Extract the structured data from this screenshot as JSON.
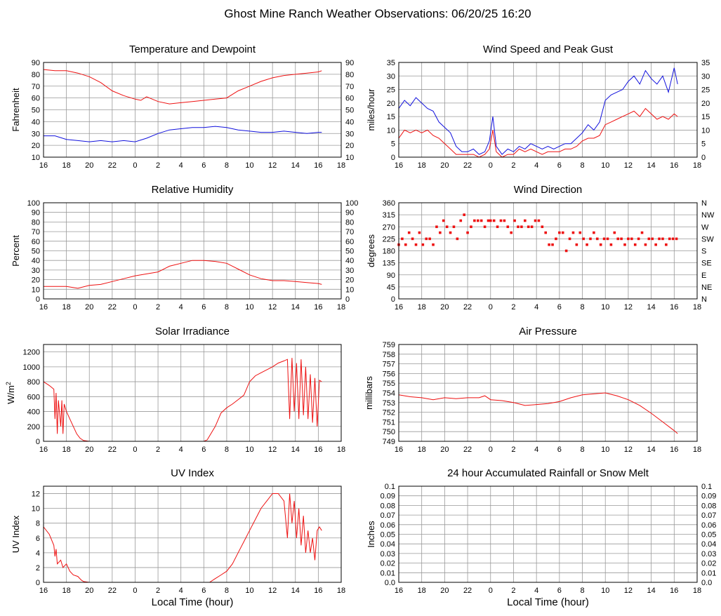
{
  "title": "Ghost Mine Ranch Weather Observations: 06/20/25 16:20",
  "x_ticks": [
    "16",
    "18",
    "20",
    "22",
    "0",
    "2",
    "4",
    "6",
    "8",
    "10",
    "12",
    "14",
    "16",
    "18"
  ],
  "x_axis_label": "Local Time (hour)",
  "colors": {
    "red": "#ee1111",
    "blue": "#1111dd",
    "grid": "#999999",
    "frame": "#000000"
  },
  "chart_data": [
    {
      "id": "temperature",
      "type": "line",
      "title": "Temperature and Dewpoint",
      "ylabel": "Fahrenheit",
      "ylim": [
        10,
        90
      ],
      "yticks": [
        "10",
        "20",
        "30",
        "40",
        "50",
        "60",
        "70",
        "80",
        "90"
      ],
      "right_yticks": [
        "10",
        "20",
        "30",
        "40",
        "50",
        "60",
        "70",
        "80",
        "90"
      ],
      "x_hours_since_16": [
        0,
        2,
        4,
        6,
        8,
        10,
        12,
        14,
        16,
        18,
        20,
        22,
        24
      ],
      "xlim_hours": [
        0,
        26
      ],
      "series": [
        {
          "color": "red",
          "x": [
            0,
            1,
            2,
            3,
            4,
            5,
            6,
            7,
            8,
            8.5,
            9,
            10,
            11,
            12,
            13,
            14,
            15,
            16,
            17,
            18,
            19,
            20,
            21,
            22,
            23,
            24,
            24.3
          ],
          "values": [
            84,
            83,
            83,
            81,
            78,
            73,
            66,
            62,
            59,
            58,
            61,
            57,
            55,
            56,
            57,
            58,
            59,
            60,
            66,
            70,
            74,
            77,
            79,
            80,
            81,
            82,
            83
          ]
        },
        {
          "color": "blue",
          "x": [
            0,
            1,
            2,
            3,
            4,
            5,
            6,
            7,
            8,
            9,
            10,
            11,
            12,
            13,
            14,
            15,
            16,
            17,
            18,
            19,
            20,
            21,
            22,
            23,
            24,
            24.3
          ],
          "values": [
            28,
            28,
            25,
            24,
            23,
            24,
            23,
            24,
            23,
            26,
            30,
            33,
            34,
            35,
            35,
            36,
            35,
            33,
            32,
            31,
            31,
            32,
            31,
            30,
            31,
            31
          ]
        }
      ]
    },
    {
      "id": "wind_speed",
      "type": "line",
      "title": "Wind Speed and Peak Gust",
      "ylabel": "miles/hour",
      "ylim": [
        0,
        35
      ],
      "yticks": [
        "0",
        "5",
        "10",
        "15",
        "20",
        "25",
        "30",
        "35"
      ],
      "right_yticks": [
        "0",
        "5",
        "10",
        "15",
        "20",
        "25",
        "30",
        "35"
      ],
      "xlim_hours": [
        0,
        26
      ],
      "series": [
        {
          "color": "blue",
          "x": [
            0,
            0.5,
            1,
            1.5,
            2,
            2.5,
            3,
            3.5,
            4,
            4.5,
            5,
            5.5,
            6,
            6.5,
            7,
            7.5,
            7.9,
            8.2,
            8.5,
            9,
            9.5,
            10,
            10.5,
            11,
            11.5,
            12,
            12.5,
            13,
            13.5,
            14,
            14.5,
            15,
            15.5,
            16,
            16.5,
            17,
            17.5,
            18,
            18.5,
            19,
            19.5,
            20,
            20.5,
            21,
            21.5,
            22,
            22.5,
            23,
            23.5,
            24,
            24.3
          ],
          "values": [
            18,
            21,
            19,
            22,
            20,
            18,
            17,
            13,
            11,
            9,
            4,
            2,
            2,
            3,
            1,
            2,
            6,
            15,
            4,
            1,
            3,
            2,
            4,
            3,
            5,
            4,
            3,
            4,
            3,
            4,
            5,
            5,
            7,
            9,
            12,
            10,
            13,
            21,
            23,
            24,
            25,
            28,
            30,
            27,
            32,
            29,
            27,
            30,
            24,
            33,
            27
          ]
        },
        {
          "color": "red",
          "x": [
            0,
            0.5,
            1,
            1.5,
            2,
            2.5,
            3,
            3.5,
            4,
            4.5,
            5,
            5.5,
            6,
            6.5,
            7,
            7.5,
            7.9,
            8.2,
            8.5,
            9,
            9.5,
            10,
            10.5,
            11,
            11.5,
            12,
            12.5,
            13,
            13.5,
            14,
            14.5,
            15,
            15.5,
            16,
            16.5,
            17,
            17.5,
            18,
            18.5,
            19,
            19.5,
            20,
            20.5,
            21,
            21.5,
            22,
            22.5,
            23,
            23.5,
            24,
            24.3
          ],
          "values": [
            7,
            10,
            9,
            10,
            9,
            10,
            8,
            7,
            5,
            3,
            1,
            1,
            1,
            1,
            0,
            1,
            3,
            10,
            2,
            0,
            1,
            1,
            3,
            2,
            3,
            2,
            1,
            2,
            2,
            2,
            3,
            3,
            4,
            6,
            7,
            7,
            8,
            12,
            13,
            14,
            15,
            16,
            17,
            15,
            18,
            16,
            14,
            15,
            14,
            16,
            15
          ]
        }
      ]
    },
    {
      "id": "humidity",
      "type": "line",
      "title": "Relative Humidity",
      "ylabel": "Percent",
      "ylim": [
        0,
        100
      ],
      "yticks": [
        "0",
        "10",
        "20",
        "30",
        "40",
        "50",
        "60",
        "70",
        "80",
        "90",
        "100"
      ],
      "right_yticks": [
        "0",
        "10",
        "20",
        "30",
        "40",
        "50",
        "60",
        "70",
        "80",
        "90",
        "100"
      ],
      "xlim_hours": [
        0,
        26
      ],
      "series": [
        {
          "color": "red",
          "x": [
            0,
            1,
            2,
            3,
            4,
            5,
            6,
            7,
            8,
            9,
            10,
            11,
            12,
            13,
            14,
            15,
            16,
            17,
            18,
            19,
            20,
            21,
            22,
            23,
            24,
            24.3
          ],
          "values": [
            13,
            13,
            13,
            11,
            14,
            15,
            18,
            21,
            24,
            26,
            28,
            34,
            37,
            40,
            40,
            39,
            37,
            31,
            25,
            21,
            19,
            19,
            18,
            17,
            16,
            15
          ]
        }
      ]
    },
    {
      "id": "wind_direction",
      "type": "scatter",
      "title": "Wind Direction",
      "ylabel": "degrees",
      "ylim": [
        0,
        360
      ],
      "yticks": [
        "0",
        "45",
        "90",
        "135",
        "180",
        "225",
        "270",
        "315",
        "360"
      ],
      "right_yticks": [
        "N",
        "NE",
        "E",
        "SE",
        "S",
        "SW",
        "W",
        "NW",
        "N"
      ],
      "xlim_hours": [
        0,
        26
      ],
      "series": [
        {
          "color": "red",
          "x": [
            0,
            0.3,
            0.6,
            0.9,
            1.2,
            1.5,
            1.8,
            2.1,
            2.4,
            2.7,
            3.0,
            3.3,
            3.6,
            3.9,
            4.2,
            4.5,
            4.8,
            5.1,
            5.4,
            5.7,
            6.0,
            6.3,
            6.6,
            6.9,
            7.2,
            7.5,
            7.8,
            8.0,
            8.3,
            8.6,
            8.9,
            9.2,
            9.5,
            9.8,
            10.1,
            10.4,
            10.7,
            11.0,
            11.3,
            11.6,
            11.9,
            12.2,
            12.5,
            12.8,
            13.1,
            13.4,
            13.7,
            14.0,
            14.3,
            14.6,
            14.9,
            15.2,
            15.5,
            15.8,
            16.1,
            16.4,
            16.7,
            17.0,
            17.3,
            17.6,
            17.9,
            18.2,
            18.5,
            18.8,
            19.1,
            19.4,
            19.7,
            20.0,
            20.3,
            20.6,
            20.9,
            21.2,
            21.5,
            21.8,
            22.1,
            22.4,
            22.7,
            23.0,
            23.3,
            23.6,
            23.9,
            24.2
          ],
          "values": [
            203,
            225,
            203,
            248,
            225,
            203,
            248,
            203,
            225,
            225,
            203,
            270,
            248,
            293,
            270,
            248,
            270,
            225,
            293,
            315,
            248,
            270,
            293,
            293,
            293,
            270,
            293,
            293,
            293,
            270,
            293,
            293,
            270,
            248,
            293,
            270,
            270,
            293,
            270,
            270,
            293,
            293,
            270,
            248,
            203,
            203,
            225,
            248,
            248,
            180,
            225,
            248,
            203,
            248,
            225,
            203,
            225,
            248,
            225,
            203,
            225,
            225,
            203,
            248,
            225,
            225,
            203,
            225,
            225,
            203,
            225,
            248,
            203,
            225,
            225,
            203,
            225,
            225,
            203,
            225,
            225,
            225
          ]
        }
      ]
    },
    {
      "id": "solar",
      "type": "line",
      "title": "Solar Irradiance",
      "ylabel": "W/m",
      "ylabel_sup": "2",
      "ylim": [
        0,
        1300
      ],
      "yticks": [
        "0",
        "200",
        "400",
        "600",
        "800",
        "1000",
        "1200"
      ],
      "xlim_hours": [
        0,
        26
      ],
      "series": [
        {
          "color": "red",
          "x": [
            0,
            0.5,
            0.9,
            1.0,
            1.1,
            1.2,
            1.3,
            1.5,
            1.6,
            1.7,
            1.8,
            2.0,
            2.3,
            2.6,
            2.9,
            3.2,
            3.5,
            4,
            5,
            6,
            8,
            10,
            12,
            13.5,
            14,
            14.3,
            15,
            15.5,
            16,
            16.5,
            17,
            17.5,
            18,
            18.5,
            19,
            19.5,
            20,
            20.5,
            21,
            21.3,
            21.5,
            21.7,
            21.9,
            22.1,
            22.3,
            22.5,
            22.7,
            22.9,
            23.1,
            23.3,
            23.5,
            23.7,
            23.9,
            24.1,
            24.3
          ],
          "values": [
            800,
            750,
            700,
            300,
            650,
            100,
            550,
            200,
            550,
            100,
            500,
            400,
            300,
            200,
            100,
            40,
            10,
            0,
            0,
            0,
            0,
            0,
            0,
            0,
            0,
            20,
            200,
            380,
            450,
            500,
            560,
            620,
            800,
            880,
            920,
            960,
            1000,
            1050,
            1080,
            1100,
            300,
            1120,
            400,
            1050,
            300,
            1100,
            350,
            1000,
            300,
            900,
            250,
            850,
            200,
            820,
            800
          ]
        }
      ]
    },
    {
      "id": "pressure",
      "type": "line",
      "title": "Air Pressure",
      "ylabel": "millibars",
      "ylim": [
        749,
        759
      ],
      "yticks": [
        "749",
        "750",
        "751",
        "752",
        "753",
        "754",
        "755",
        "756",
        "757",
        "758",
        "759"
      ],
      "xlim_hours": [
        0,
        26
      ],
      "series": [
        {
          "color": "red",
          "x": [
            0,
            1,
            2,
            3,
            4,
            5,
            6,
            7,
            7.5,
            8,
            9,
            10,
            11,
            12,
            13,
            14,
            15,
            16,
            17,
            18,
            19,
            20,
            21,
            22,
            23,
            24,
            24.3
          ],
          "values": [
            753.8,
            753.6,
            753.5,
            753.3,
            753.5,
            753.4,
            753.5,
            753.5,
            753.7,
            753.3,
            753.2,
            753.0,
            752.7,
            752.8,
            752.9,
            753.1,
            753.5,
            753.8,
            753.9,
            754.0,
            753.7,
            753.3,
            752.7,
            751.9,
            751.0,
            750.1,
            749.8
          ]
        }
      ]
    },
    {
      "id": "uv",
      "type": "line",
      "title": "UV Index",
      "ylabel": "UV Index",
      "ylim": [
        0,
        13
      ],
      "yticks": [
        "0",
        "2",
        "4",
        "6",
        "8",
        "10",
        "12"
      ],
      "xlim_hours": [
        0,
        26
      ],
      "series": [
        {
          "color": "red",
          "x": [
            0,
            0.5,
            0.9,
            1.0,
            1.1,
            1.2,
            1.5,
            1.7,
            2.0,
            2.3,
            2.6,
            3.0,
            3.3,
            3.5,
            4,
            6,
            8,
            10,
            14.5,
            15,
            15.5,
            16,
            16.5,
            17,
            17.5,
            18,
            18.5,
            19,
            19.5,
            20,
            20.5,
            21,
            21.3,
            21.5,
            21.7,
            21.9,
            22.1,
            22.3,
            22.5,
            22.7,
            22.9,
            23.1,
            23.3,
            23.5,
            23.7,
            23.9,
            24.1,
            24.3
          ],
          "values": [
            7.5,
            6.5,
            5,
            3.5,
            4.5,
            2.5,
            3,
            2,
            2.5,
            1.5,
            1,
            0.8,
            0.3,
            0.1,
            0,
            0,
            0,
            0,
            0,
            0.5,
            1,
            1.5,
            2.5,
            4,
            5.5,
            7,
            8.5,
            10,
            11,
            12,
            12,
            11,
            6,
            12,
            8,
            11,
            6,
            10,
            5,
            9,
            4,
            7,
            4,
            6,
            3,
            7,
            7.5,
            7
          ]
        }
      ]
    },
    {
      "id": "rain",
      "type": "line",
      "title": "24 hour Accumulated Rainfall or Snow Melt",
      "ylabel": "Inches",
      "ylim": [
        0,
        0.1
      ],
      "yticks": [
        "0.0",
        "0.01",
        "0.02",
        "0.03",
        "0.04",
        "0.05",
        "0.06",
        "0.07",
        "0.08",
        "0.09",
        "0.1"
      ],
      "right_yticks": [
        "0.0",
        "0.01",
        "0.02",
        "0.03",
        "0.04",
        "0.05",
        "0.06",
        "0.07",
        "0.08",
        "0.09",
        "0.1"
      ],
      "xlim_hours": [
        0,
        26
      ],
      "series": [
        {
          "color": "red",
          "x": [
            0,
            24.3
          ],
          "values": [
            0,
            0
          ]
        }
      ]
    }
  ]
}
